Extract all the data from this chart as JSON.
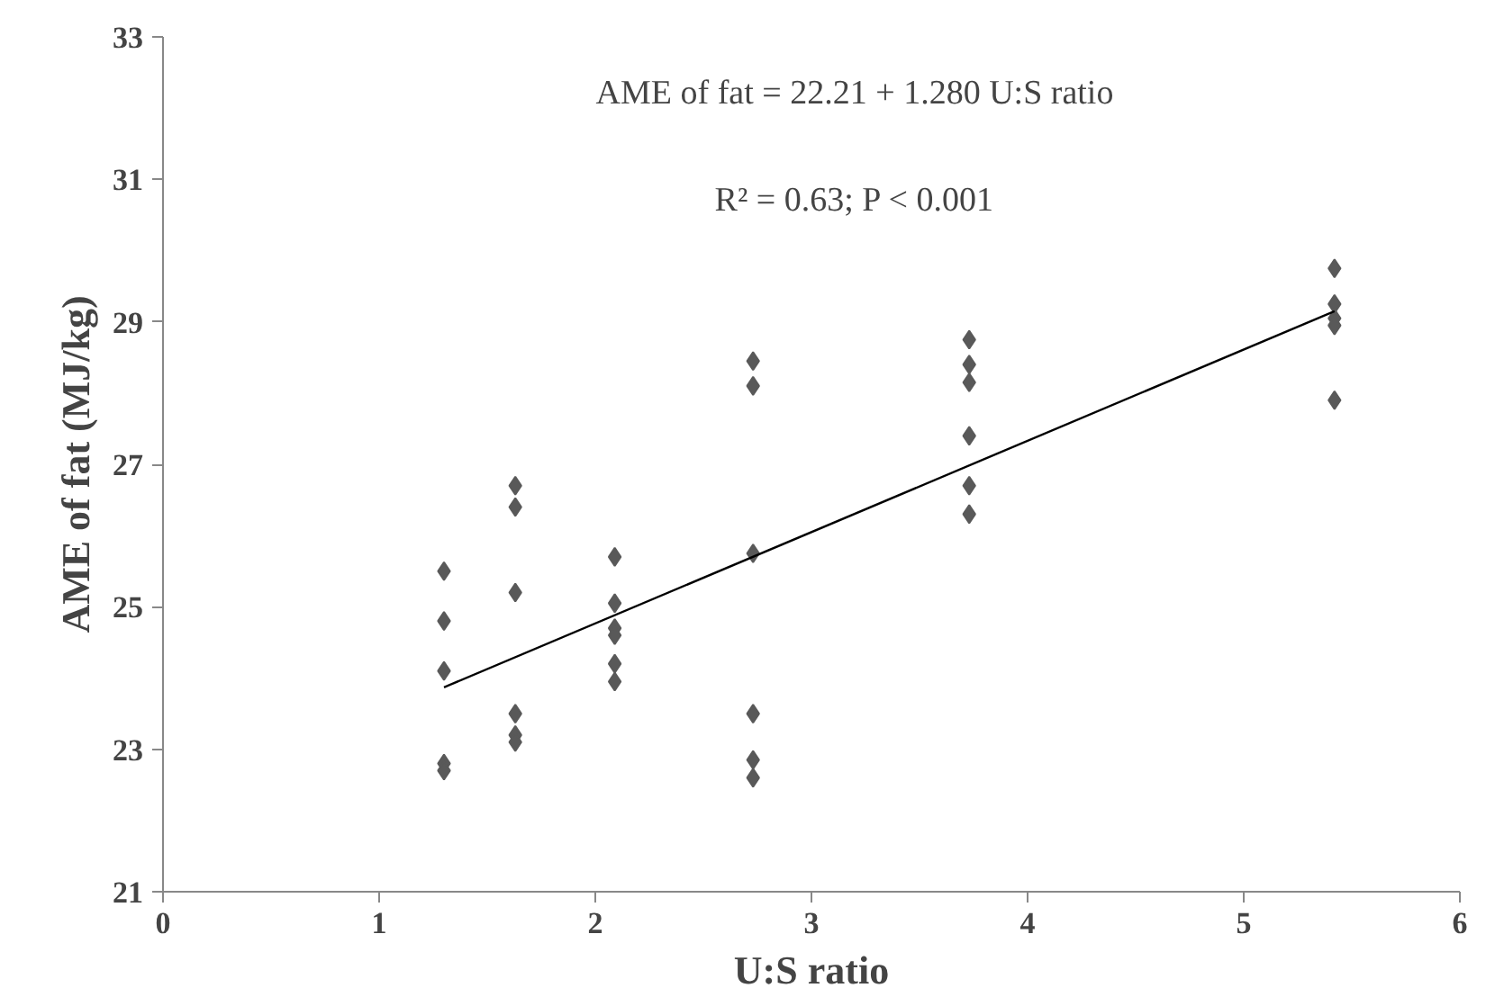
{
  "chart_data": {
    "type": "scatter",
    "xlabel": "U:S ratio",
    "ylabel": "AME of fat (MJ/kg)",
    "annotations": [
      "AME of fat = 22.21 + 1.280 U:S ratio",
      "R² = 0.63; P < 0.001"
    ],
    "xlim": [
      0,
      6
    ],
    "ylim": [
      21,
      33
    ],
    "xticks": [
      0,
      1,
      2,
      3,
      4,
      5,
      6
    ],
    "yticks": [
      21,
      23,
      25,
      27,
      29,
      31,
      33
    ],
    "grid": false,
    "series": [
      {
        "marker": "diamond",
        "color": "#595959",
        "x": [
          1.3,
          1.3,
          1.3,
          1.3,
          1.3,
          1.63,
          1.63,
          1.63,
          1.63,
          1.63,
          1.63,
          2.09,
          2.09,
          2.09,
          2.09,
          2.09,
          2.09,
          2.73,
          2.73,
          2.73,
          2.73,
          2.73,
          2.73,
          3.73,
          3.73,
          3.73,
          3.73,
          3.73,
          3.73,
          5.42,
          5.42,
          5.42,
          5.42,
          5.42
        ],
        "values": [
          25.5,
          24.8,
          24.1,
          22.8,
          22.7,
          26.7,
          26.4,
          25.2,
          23.5,
          23.2,
          23.1,
          25.7,
          25.05,
          24.7,
          24.6,
          24.2,
          23.95,
          28.45,
          28.1,
          25.75,
          23.5,
          22.85,
          22.6,
          28.75,
          28.4,
          28.15,
          27.4,
          26.7,
          26.3,
          29.75,
          29.25,
          29.05,
          28.95,
          27.9
        ]
      },
      {
        "type": "line",
        "marker": "none",
        "color": "#000000",
        "x": [
          1.3,
          5.42
        ],
        "values": [
          23.87,
          29.15
        ]
      }
    ]
  }
}
